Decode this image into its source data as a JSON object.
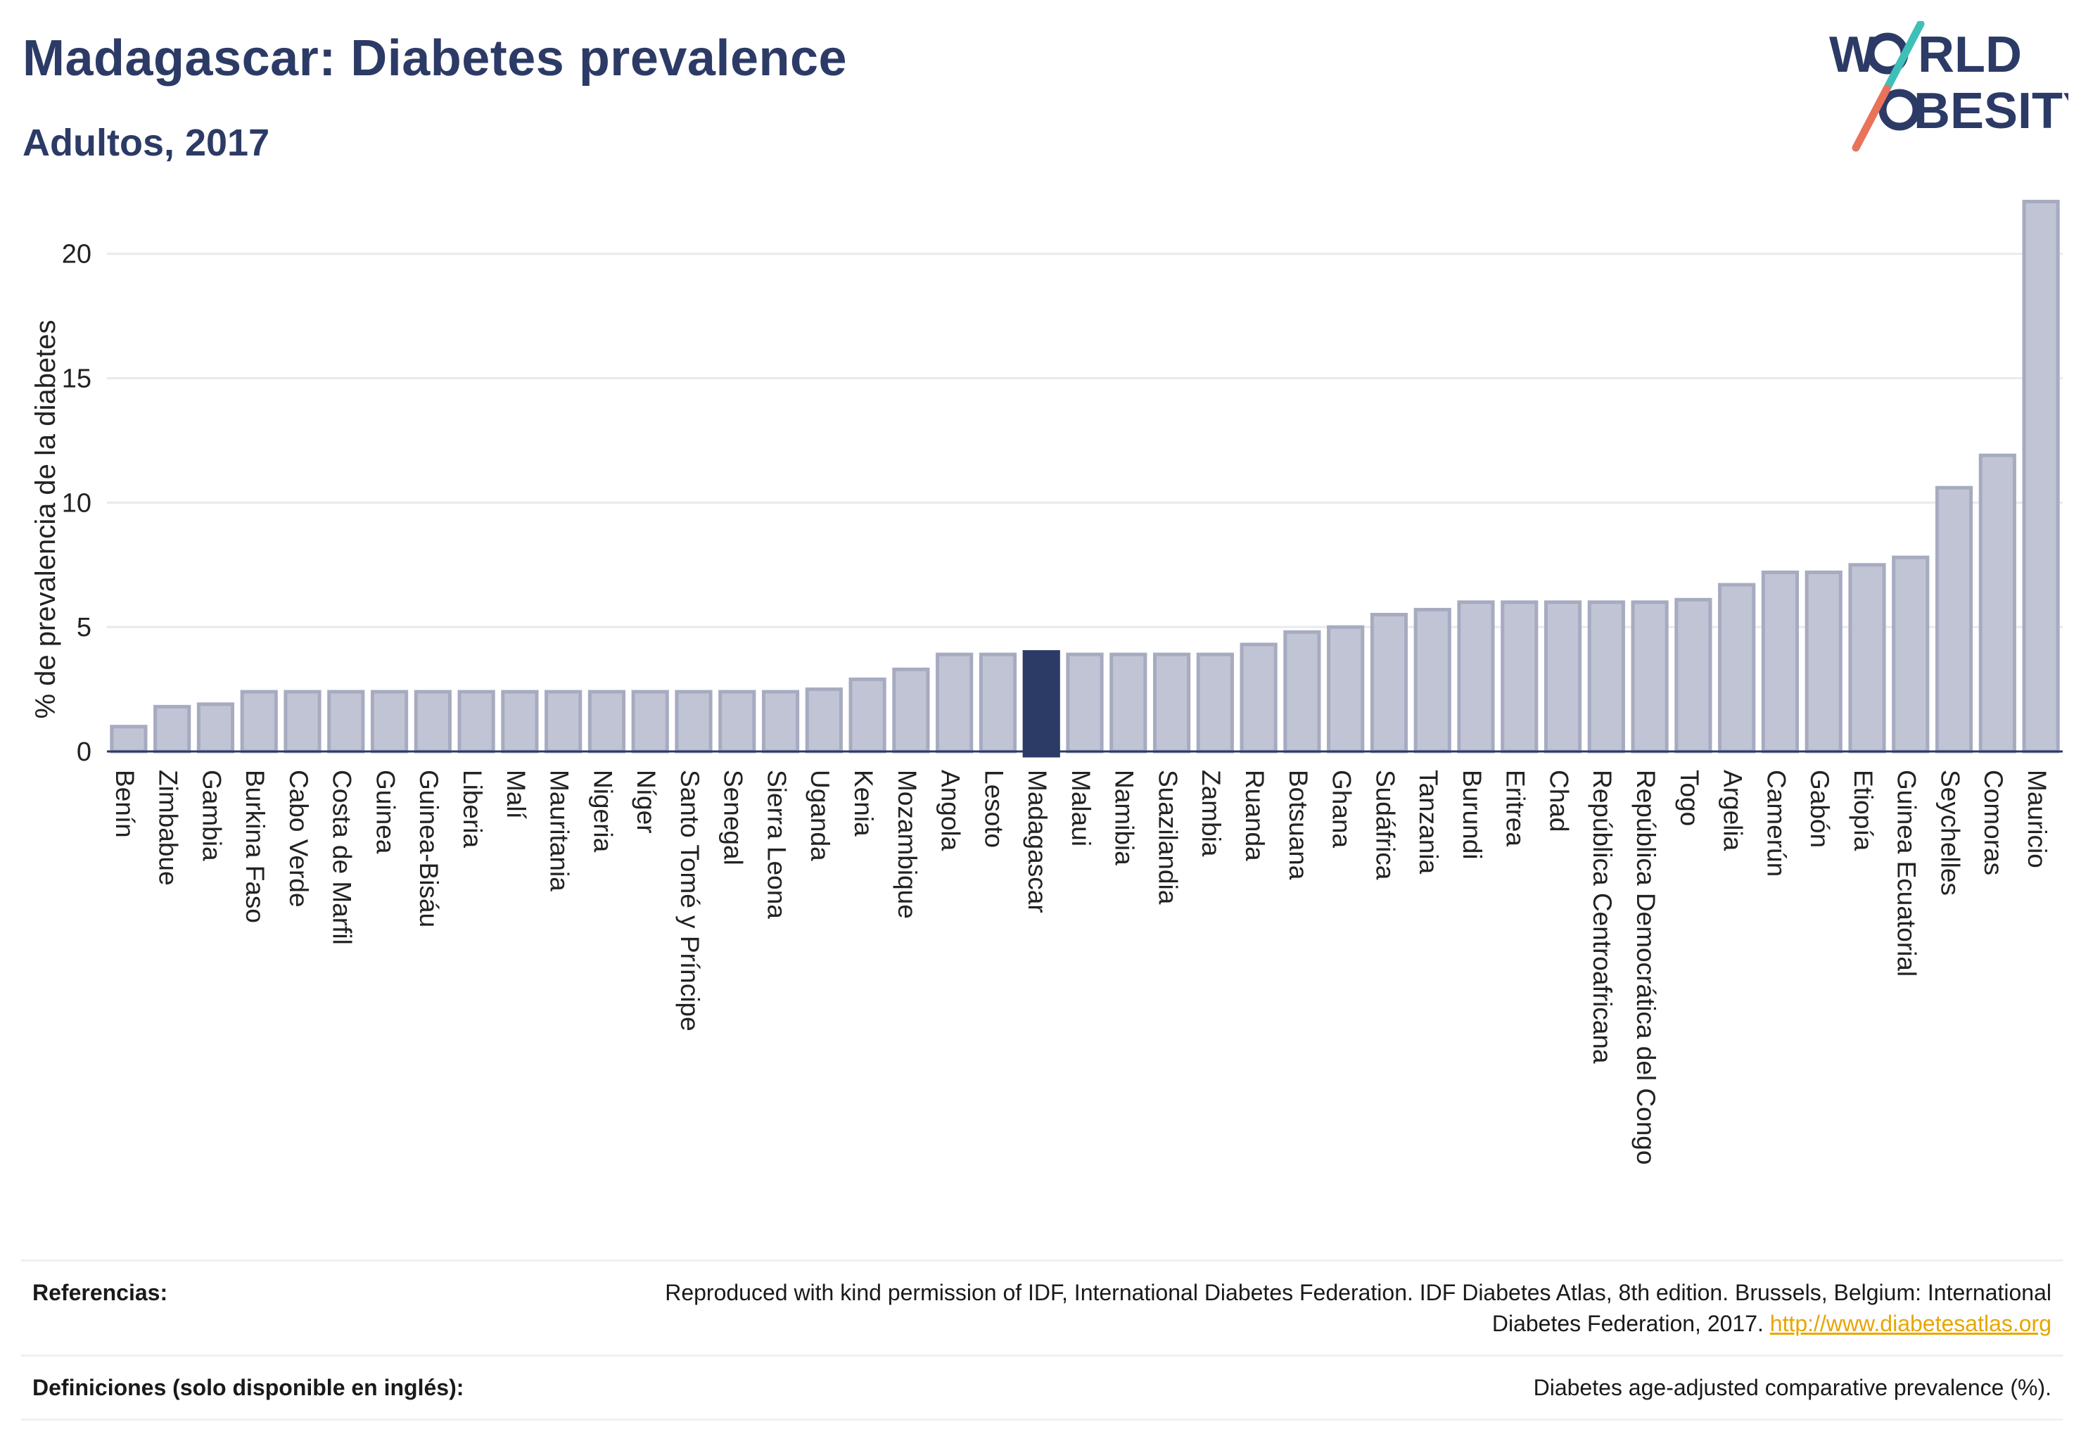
{
  "header": {
    "title": "Madagascar: Diabetes prevalence",
    "subtitle": "Adultos, 2017"
  },
  "logo": {
    "line1_pre": "W",
    "line1_post": "RLD",
    "line2_pre": "",
    "line2_post": "BESITY",
    "text_color": "#2c3a66",
    "slash_top_color": "#3fbfb8",
    "slash_bottom_color": "#e8735a"
  },
  "chart_data": {
    "type": "bar",
    "ylabel": "% de prevalencia de la diabetes",
    "ylim": [
      0,
      22
    ],
    "yticks": [
      0,
      5,
      10,
      15,
      20
    ],
    "grid": true,
    "highlight": "Madagascar",
    "colors": {
      "bar": "#c0c4d4",
      "bar_stroke": "#a7abc0",
      "highlight": "#2c3a66",
      "grid": "#e8eaef",
      "axis": "#2c3a66"
    },
    "categories": [
      "Benín",
      "Zimbabue",
      "Gambia",
      "Burkina Faso",
      "Cabo Verde",
      "Costa de Marfil",
      "Guinea",
      "Guinea-Bisáu",
      "Liberia",
      "Malí",
      "Mauritania",
      "Nigeria",
      "Níger",
      "Santo Tomé y Príncipe",
      "Senegal",
      "Sierra Leona",
      "Uganda",
      "Kenia",
      "Mozambique",
      "Angola",
      "Lesoto",
      "Madagascar",
      "Malaui",
      "Namibia",
      "Suazilandia",
      "Zambia",
      "Ruanda",
      "Botsuana",
      "Ghana",
      "Sudáfrica",
      "Tanzania",
      "Burundi",
      "Eritrea",
      "Chad",
      "República Centroafricana",
      "República Democrática del Congo",
      "Togo",
      "Argelia",
      "Camerún",
      "Gabón",
      "Etiopía",
      "Guinea Ecuatorial",
      "Seychelles",
      "Comoras",
      "Mauricio"
    ],
    "values": [
      1.0,
      1.8,
      1.9,
      2.4,
      2.4,
      2.4,
      2.4,
      2.4,
      2.4,
      2.4,
      2.4,
      2.4,
      2.4,
      2.4,
      2.4,
      2.4,
      2.5,
      2.9,
      3.3,
      3.9,
      3.9,
      4.0,
      3.9,
      3.9,
      3.9,
      3.9,
      4.3,
      4.8,
      5.0,
      5.5,
      5.7,
      6.0,
      6.0,
      6.0,
      6.0,
      6.0,
      6.1,
      6.7,
      7.2,
      7.2,
      7.5,
      7.8,
      10.6,
      11.9,
      22.1
    ]
  },
  "footer": {
    "rows": [
      {
        "label": "Referencias:",
        "text": "Reproduced with kind permission of IDF, International Diabetes Federation. IDF Diabetes Atlas, 8th edition. Brussels, Belgium: International Diabetes Federation, 2017. ",
        "link": "http://www.diabetesatlas.org"
      },
      {
        "label": "Definiciones (solo disponible en inglés):",
        "text": "Diabetes age-adjusted comparative prevalence (%)."
      }
    ]
  }
}
